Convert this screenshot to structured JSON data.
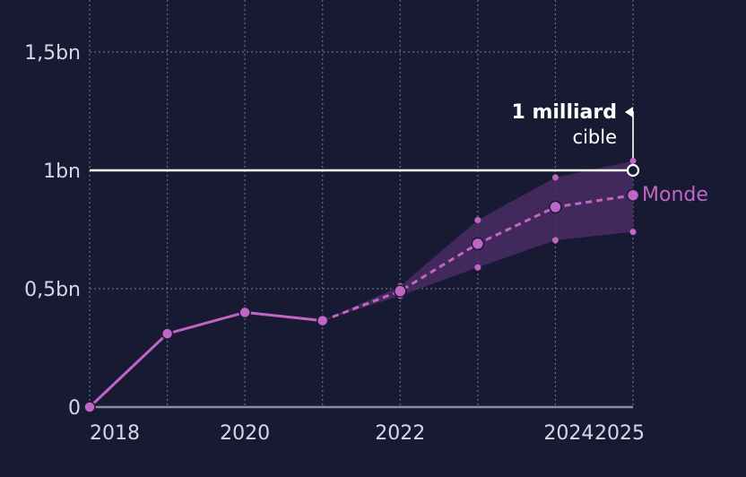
{
  "chart_data": {
    "type": "line",
    "x_ticks": [
      "2018",
      "2020",
      "2022",
      "2024",
      "2025"
    ],
    "y_ticks": [
      {
        "value": 0,
        "label": "0"
      },
      {
        "value": 0.5,
        "label": "0,5bn"
      },
      {
        "value": 1.0,
        "label": "1bn"
      },
      {
        "value": 1.5,
        "label": "1,5bn"
      }
    ],
    "xlim": [
      2018,
      2025
    ],
    "ylim": [
      0,
      1.7
    ],
    "grid": true,
    "series": [
      {
        "name": "Monde",
        "color": "#c165c7",
        "actual": [
          {
            "x": 2018,
            "y": 0.0
          },
          {
            "x": 2019,
            "y": 0.31
          },
          {
            "x": 2020,
            "y": 0.4
          },
          {
            "x": 2021,
            "y": 0.365
          }
        ],
        "projection": [
          {
            "x": 2021,
            "y": 0.365
          },
          {
            "x": 2022,
            "y": 0.49
          },
          {
            "x": 2023,
            "y": 0.69
          },
          {
            "x": 2024,
            "y": 0.845
          },
          {
            "x": 2025,
            "y": 0.895
          }
        ],
        "range": [
          {
            "x": 2021,
            "low": 0.365,
            "high": 0.365
          },
          {
            "x": 2022,
            "low": 0.47,
            "high": 0.51
          },
          {
            "x": 2023,
            "low": 0.59,
            "high": 0.79
          },
          {
            "x": 2024,
            "low": 0.705,
            "high": 0.97
          },
          {
            "x": 2025,
            "low": 0.74,
            "high": 1.04
          }
        ]
      }
    ],
    "target": {
      "value": 1.0,
      "x": 2025,
      "title": "1 milliard",
      "subtitle": "cible",
      "color": "#ffffff"
    },
    "colors": {
      "background": "#181a33",
      "grid": "#6a6c86",
      "axis": "#8a8a9a",
      "band": "#4a2d63",
      "text": "#d6d7e4"
    }
  }
}
